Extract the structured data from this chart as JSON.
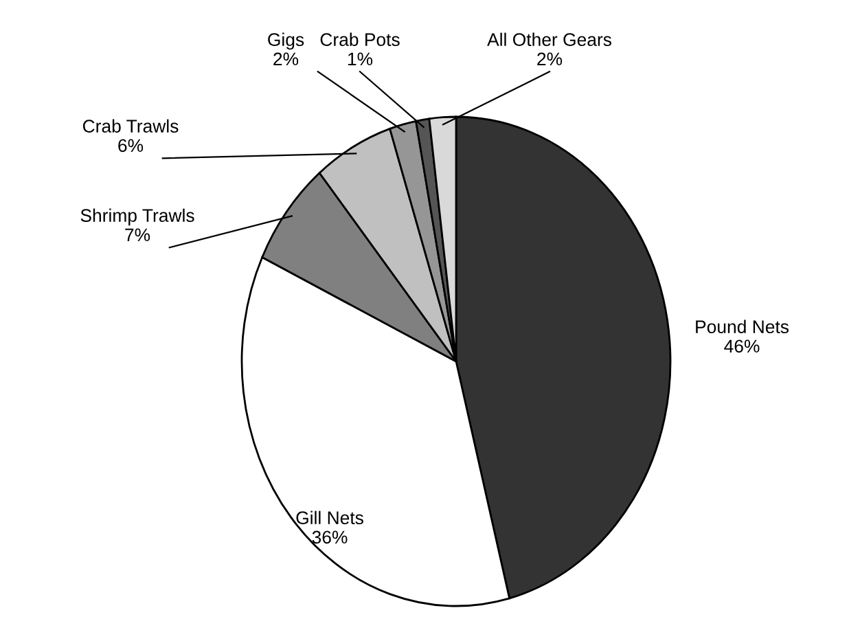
{
  "chart_data": {
    "type": "pie",
    "categories": [
      "Pound Nets",
      "Gill Nets",
      "Shrimp Trawls",
      "Crab Trawls",
      "Gigs",
      "Crab Pots",
      "All Other Gears"
    ],
    "values": [
      46,
      36,
      7,
      6,
      2,
      1,
      2
    ],
    "value_labels": [
      "46%",
      "36%",
      "7%",
      "6%",
      "2%",
      "1%",
      "2%"
    ],
    "colors": [
      "#333333",
      "#ffffff",
      "#808080",
      "#c0c0c0",
      "#969696",
      "#555555",
      "#d9d9d9"
    ]
  }
}
